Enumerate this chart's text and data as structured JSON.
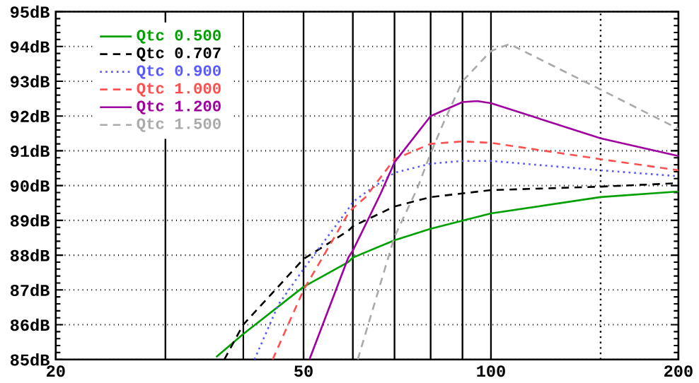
{
  "chart_data": {
    "type": "line",
    "log": "x",
    "grid": "y",
    "legend": "top left",
    "marker": "none",
    "xlim": [
      20,
      200
    ],
    "xticks": [
      20,
      50,
      100,
      200
    ],
    "ylim": [
      85,
      95
    ],
    "yticks": [
      {
        "value": 85,
        "label": "85dB"
      },
      {
        "value": 86,
        "label": "86dB"
      },
      {
        "value": 87,
        "label": "87dB"
      },
      {
        "value": 88,
        "label": "88dB"
      },
      {
        "value": 89,
        "label": "89dB"
      },
      {
        "value": 90,
        "label": "90dB"
      },
      {
        "value": 91,
        "label": "91dB"
      },
      {
        "value": 92,
        "label": "92dB"
      },
      {
        "value": 93,
        "label": "93dB"
      },
      {
        "value": 94,
        "label": "94dB"
      },
      {
        "value": 95,
        "label": "95dB"
      }
    ],
    "ref_lines": [
      {
        "axis": "x",
        "value": 30,
        "line_style": "solid",
        "color": "#000000"
      },
      {
        "axis": "x",
        "value": 40,
        "line_style": "solid",
        "color": "#000000"
      },
      {
        "axis": "x",
        "value": 50,
        "line_style": "solid",
        "color": "#000000"
      },
      {
        "axis": "x",
        "value": 60,
        "line_style": "solid",
        "color": "#000000"
      },
      {
        "axis": "x",
        "value": 70,
        "line_style": "solid",
        "color": "#000000"
      },
      {
        "axis": "x",
        "value": 80,
        "line_style": "solid",
        "color": "#000000"
      },
      {
        "axis": "x",
        "value": 90,
        "line_style": "solid",
        "color": "#000000"
      },
      {
        "axis": "x",
        "value": 100,
        "line_style": "solid",
        "color": "#000000"
      },
      {
        "axis": "x",
        "value": 150,
        "line_style": "dotted",
        "color": "#000000"
      }
    ],
    "series": [
      {
        "name": "Qtc 0.500",
        "color": "#00a000",
        "line_style": "solid",
        "x": [
          36.2,
          40,
          50,
          59,
          60,
          70,
          80,
          100,
          150,
          200
        ],
        "values": [
          85.07,
          85.73,
          87.09,
          87.8,
          87.93,
          88.43,
          88.76,
          89.2,
          89.67,
          89.83
        ]
      },
      {
        "name": "Qtc 0.707",
        "color": "#000000",
        "line_style": "dashed",
        "x": [
          37.3,
          40,
          50,
          59,
          60,
          70,
          80,
          100,
          150,
          200
        ],
        "values": [
          85.0,
          86.0,
          87.89,
          88.7,
          88.83,
          89.4,
          89.67,
          89.87,
          89.97,
          90.07
        ]
      },
      {
        "name": "Qtc 0.900",
        "color": "#5a5aff",
        "line_style": "dotted",
        "x": [
          41.7,
          45.6,
          50,
          59,
          60,
          62.9,
          70,
          80,
          90,
          100,
          150,
          200
        ],
        "values": [
          85.0,
          86.59,
          87.6,
          89.33,
          89.53,
          89.8,
          90.37,
          90.63,
          90.71,
          90.71,
          90.44,
          90.27
        ]
      },
      {
        "name": "Qtc 1.000",
        "color": "#ff5050",
        "line_style": "dashed",
        "x": [
          44.6,
          50,
          59,
          60,
          62.9,
          70,
          80,
          90,
          100,
          150,
          200
        ],
        "values": [
          85.0,
          87.0,
          89.2,
          89.35,
          89.67,
          90.76,
          91.2,
          91.27,
          91.23,
          90.76,
          90.44
        ]
      },
      {
        "name": "Qtc 1.200",
        "color": "#a000a0",
        "line_style": "solid",
        "x": [
          51.1,
          59,
          60,
          66.5,
          70,
          80,
          90,
          95,
          100,
          150,
          200
        ],
        "values": [
          85.0,
          87.93,
          88.13,
          89.77,
          90.67,
          92.0,
          92.4,
          92.43,
          92.37,
          91.36,
          90.85
        ]
      },
      {
        "name": "Qtc 1.500",
        "color": "#aaaaaa",
        "line_style": "dashed",
        "x": [
          61.1,
          70,
          76.2,
          80,
          84.2,
          90,
          100,
          107.1,
          150,
          200
        ],
        "values": [
          85.0,
          88.53,
          89.93,
          90.93,
          91.87,
          93.0,
          93.87,
          94.07,
          92.76,
          91.63
        ]
      }
    ]
  }
}
